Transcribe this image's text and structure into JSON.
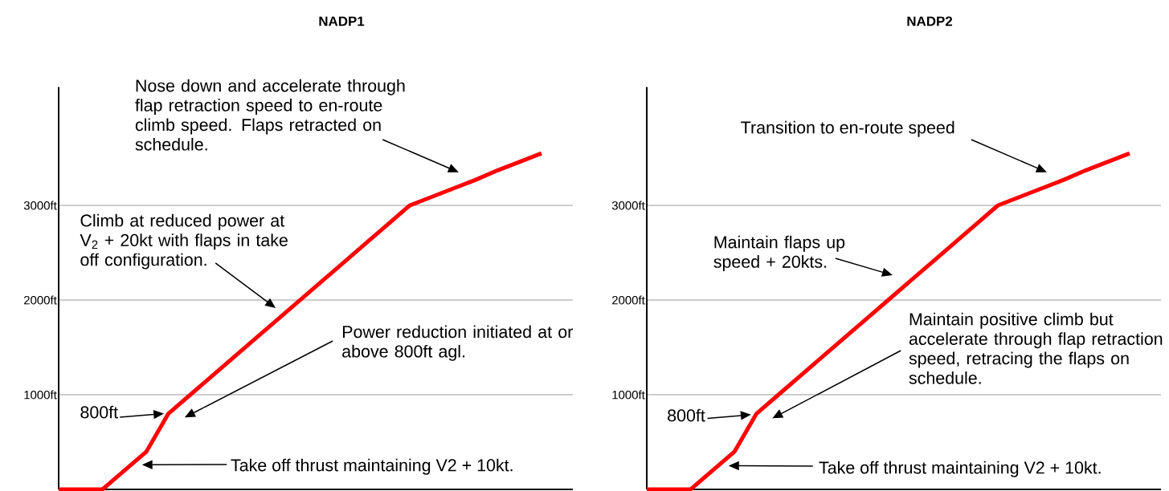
{
  "chart_data": [
    {
      "type": "line",
      "title": "NADP1",
      "categories": [
        null,
        null,
        null,
        null,
        null,
        null,
        null,
        null,
        null,
        null,
        null,
        null,
        null,
        null,
        null,
        null,
        null,
        null,
        null,
        null,
        null,
        null,
        null
      ],
      "series": [
        {
          "color": "#ff0000",
          "values": [
            0,
            0,
            0,
            200,
            400,
            800,
            1000,
            1200,
            1400,
            1600,
            1800,
            2000,
            2200,
            2400,
            2600,
            2800,
            3000,
            3090,
            3180,
            3270,
            3370,
            3460,
            3550
          ]
        }
      ],
      "ylim": [
        0,
        4250
      ],
      "yticks": [
        {
          "value": 1000,
          "label": "1000ft"
        },
        {
          "value": 2000,
          "label": "2000ft"
        },
        {
          "value": 3000,
          "label": "3000ft"
        }
      ],
      "grid": "y",
      "tick_labels": "y",
      "annotations": [
        "Nose down and accelerate through flap retraction speed to en-route climb speed. Flaps retracted on schedule.",
        "Climb at reduced power at V$_{2}$ + 20kt with flaps in take off configuration.",
        "Power reduction initiated at or above 800ft agl.",
        "800ft",
        "Take off thrust maintaining V2 + 10kt."
      ]
    },
    {
      "type": "line",
      "title": "NADP2",
      "categories": [
        null,
        null,
        null,
        null,
        null,
        null,
        null,
        null,
        null,
        null,
        null,
        null,
        null,
        null,
        null,
        null,
        null,
        null,
        null,
        null,
        null,
        null,
        null
      ],
      "series": [
        {
          "color": "#ff0000",
          "values": [
            0,
            0,
            0,
            200,
            400,
            800,
            1000,
            1200,
            1400,
            1600,
            1800,
            2000,
            2200,
            2400,
            2600,
            2800,
            3000,
            3090,
            3180,
            3270,
            3370,
            3460,
            3550
          ]
        }
      ],
      "ylim": [
        0,
        4250
      ],
      "yticks": [
        {
          "value": 1000,
          "label": "1000ft"
        },
        {
          "value": 2000,
          "label": "2000ft"
        },
        {
          "value": 3000,
          "label": "3000ft"
        }
      ],
      "grid": "y",
      "tick_labels": "y",
      "annotations": [
        "Transition to en-route speed",
        "Maintain flaps up speed + 20kts.",
        "Maintain positive climb but accelerate through flap retraction speed, retracing the flaps on schedule.",
        "800ft",
        "Take off thrust maintaining V2 + 10kt."
      ]
    }
  ]
}
